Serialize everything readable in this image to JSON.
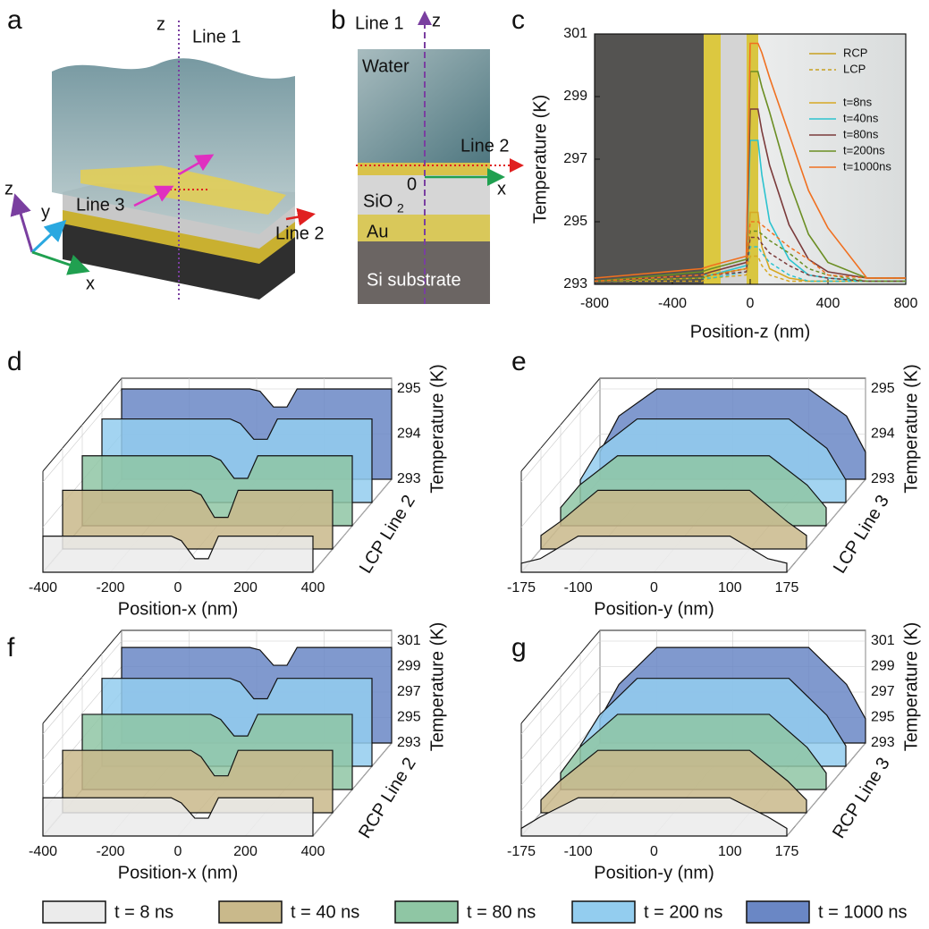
{
  "panel_labels": [
    "a",
    "b",
    "c",
    "d",
    "e",
    "f",
    "g"
  ],
  "diagram_a": {
    "z_axis": "z",
    "line1": "Line 1",
    "coord_z": "z",
    "coord_y": "y",
    "coord_x": "x",
    "line3": "Line 3",
    "line2": "Line 2"
  },
  "diagram_b": {
    "line1": "Line 1",
    "z": "z",
    "water": "Water",
    "line2": "Line 2",
    "origin": "0",
    "x": "x",
    "sio2": "SiO",
    "sio2_sub": "2",
    "au": "Au",
    "si": "Si substrate"
  },
  "chart_data": [
    {
      "type": "line",
      "x_label": "Position-z (nm)",
      "y_label": "Temperature (K)",
      "x": [
        -800,
        -250,
        -200,
        -20,
        0,
        40,
        60,
        100,
        200,
        300,
        400,
        600,
        800
      ],
      "xlim": [
        -800,
        800
      ],
      "xticks": [
        -800,
        -400,
        0,
        400,
        800
      ],
      "ylim": [
        293,
        301
      ],
      "yticks": [
        293,
        295,
        297,
        299,
        301
      ],
      "style_legend": [
        {
          "label": "RCP",
          "color": "#c8a020",
          "dashed": false
        },
        {
          "label": "LCP",
          "color": "#c8a020",
          "dashed": true
        }
      ],
      "series": [
        {
          "name": "t=8ns",
          "color": "#d6a824",
          "values": [
            293.1,
            293.2,
            293.3,
            293.5,
            295.3,
            295.3,
            294.2,
            293.5,
            293.2,
            293.1,
            293.1,
            293.1,
            293.1
          ],
          "lcp_values": [
            293.1,
            293.1,
            293.2,
            293.3,
            293.9,
            293.9,
            293.6,
            293.3,
            293.1,
            293.1,
            293.1,
            293.1,
            293.1
          ]
        },
        {
          "name": "t=40ns",
          "color": "#2cc3cf",
          "values": [
            293.1,
            293.3,
            293.3,
            293.6,
            297.6,
            297.6,
            296.5,
            295.0,
            293.8,
            293.3,
            293.2,
            293.1,
            293.1
          ],
          "lcp_values": [
            293.1,
            293.2,
            293.2,
            293.4,
            294.2,
            294.2,
            294.0,
            293.7,
            293.3,
            293.1,
            293.1,
            293.1,
            293.1
          ]
        },
        {
          "name": "t=80ns",
          "color": "#7b3b3b",
          "values": [
            293.1,
            293.3,
            293.4,
            293.7,
            298.6,
            298.6,
            297.9,
            296.8,
            294.9,
            293.8,
            293.4,
            293.2,
            293.2
          ],
          "lcp_values": [
            293.1,
            293.2,
            293.3,
            293.4,
            294.5,
            294.5,
            294.3,
            294.0,
            293.6,
            293.3,
            293.2,
            293.1,
            293.1
          ]
        },
        {
          "name": "t=200ns",
          "color": "#6b8e23",
          "values": [
            293.1,
            293.4,
            293.5,
            293.8,
            299.8,
            299.8,
            299.3,
            298.5,
            296.3,
            294.6,
            293.7,
            293.2,
            293.2
          ],
          "lcp_values": [
            293.1,
            293.2,
            293.3,
            293.5,
            294.7,
            294.7,
            294.6,
            294.4,
            294.0,
            293.5,
            293.3,
            293.1,
            293.1
          ]
        },
        {
          "name": "t=1000ns",
          "color": "#f07020",
          "values": [
            293.2,
            293.5,
            293.6,
            293.9,
            300.7,
            300.7,
            300.4,
            299.6,
            297.8,
            296.0,
            294.8,
            293.2,
            293.2
          ],
          "lcp_values": [
            293.1,
            293.3,
            293.3,
            293.5,
            295.0,
            295.0,
            294.9,
            294.7,
            294.2,
            293.8,
            293.3,
            293.2,
            293.2
          ]
        }
      ]
    },
    {
      "type": "waterfall",
      "x_label": "Position-x (nm)",
      "y_label": "Temperature (K)",
      "depth_label": "LCP Line 2",
      "x": [
        -400,
        -20,
        10,
        50,
        90,
        120,
        400
      ],
      "xlim": [
        -400,
        400
      ],
      "xticks": [
        -400,
        -200,
        0,
        200,
        400
      ],
      "ylim": [
        293,
        295
      ],
      "yticks": [
        293,
        294,
        295
      ],
      "series": [
        {
          "color": "#ebebeb",
          "values": [
            293.8,
            293.8,
            293.7,
            293.3,
            293.3,
            293.8,
            293.8
          ]
        },
        {
          "color": "#c9b98b",
          "values": [
            294.3,
            294.3,
            294.2,
            293.7,
            293.7,
            294.3,
            294.3
          ]
        },
        {
          "color": "#8fc6a4",
          "values": [
            294.55,
            294.55,
            294.45,
            294.05,
            294.05,
            294.55,
            294.55
          ]
        },
        {
          "color": "#93cdef",
          "values": [
            294.85,
            294.85,
            294.75,
            294.4,
            294.4,
            294.85,
            294.85
          ]
        },
        {
          "color": "#6a87c5",
          "values": [
            295,
            295,
            294.95,
            294.6,
            294.6,
            295,
            295
          ]
        }
      ]
    },
    {
      "type": "waterfall",
      "x_label": "Position-y (nm)",
      "y_label": "Temperature (K)",
      "depth_label": "LCP Line 3",
      "x": [
        -175,
        -150,
        -100,
        100,
        150,
        175
      ],
      "xlim": [
        -175,
        175
      ],
      "xticks": [
        -175,
        -100,
        0,
        100,
        175
      ],
      "ylim": [
        293,
        295
      ],
      "yticks": [
        293,
        294,
        295
      ],
      "series": [
        {
          "color": "#ebebeb",
          "values": [
            293.2,
            293.3,
            293.8,
            293.8,
            293.3,
            293.2
          ]
        },
        {
          "color": "#c9b98b",
          "values": [
            293.3,
            293.6,
            294.3,
            294.3,
            293.6,
            293.3
          ]
        },
        {
          "color": "#8fc6a4",
          "values": [
            293.4,
            293.9,
            294.55,
            294.55,
            293.9,
            293.4
          ]
        },
        {
          "color": "#93cdef",
          "values": [
            293.5,
            294.2,
            294.85,
            294.85,
            294.2,
            293.5
          ]
        },
        {
          "color": "#6a87c5",
          "values": [
            293.6,
            294.4,
            295,
            295,
            294.4,
            293.6
          ]
        }
      ]
    },
    {
      "type": "waterfall",
      "x_label": "Position-x (nm)",
      "y_label": "Temperature (K)",
      "depth_label": "RCP Line 2",
      "x": [
        -400,
        -20,
        10,
        50,
        90,
        120,
        400
      ],
      "xlim": [
        -400,
        400
      ],
      "xticks": [
        -400,
        -200,
        0,
        200,
        400
      ],
      "ylim": [
        293,
        301
      ],
      "yticks": [
        293,
        295,
        297,
        299,
        301
      ],
      "series": [
        {
          "color": "#ebebeb",
          "values": [
            296,
            296,
            295.6,
            294.4,
            294.4,
            296,
            296
          ]
        },
        {
          "color": "#c9b98b",
          "values": [
            297.9,
            297.9,
            297.4,
            295.9,
            295.9,
            297.9,
            297.9
          ]
        },
        {
          "color": "#8fc6a4",
          "values": [
            298.9,
            298.9,
            298.5,
            297.2,
            297.2,
            298.9,
            298.9
          ]
        },
        {
          "color": "#93cdef",
          "values": [
            299.9,
            299.9,
            299.6,
            298.3,
            298.3,
            299.9,
            299.9
          ]
        },
        {
          "color": "#6a87c5",
          "values": [
            300.5,
            300.5,
            300.3,
            299.1,
            299.1,
            300.5,
            300.5
          ]
        }
      ]
    },
    {
      "type": "waterfall",
      "x_label": "Position-y (nm)",
      "y_label": "Temperature (K)",
      "depth_label": "RCP Line 3",
      "x": [
        -175,
        -150,
        -100,
        100,
        150,
        175
      ],
      "xlim": [
        -175,
        175
      ],
      "xticks": [
        -175,
        -100,
        0,
        100,
        175
      ],
      "ylim": [
        293,
        301
      ],
      "yticks": [
        293,
        295,
        297,
        299,
        301
      ],
      "series": [
        {
          "color": "#ebebeb",
          "values": [
            293.6,
            294.5,
            296,
            296,
            294.5,
            293.6
          ]
        },
        {
          "color": "#c9b98b",
          "values": [
            294,
            295.5,
            297.9,
            297.9,
            295.5,
            294
          ]
        },
        {
          "color": "#8fc6a4",
          "values": [
            294.3,
            296.3,
            298.9,
            298.9,
            296.3,
            294.3
          ]
        },
        {
          "color": "#93cdef",
          "values": [
            294.6,
            297,
            299.9,
            299.9,
            297,
            294.6
          ]
        },
        {
          "color": "#6a87c5",
          "values": [
            294.9,
            297.6,
            300.5,
            300.5,
            297.6,
            294.9
          ]
        }
      ]
    }
  ],
  "legend": [
    {
      "label": "t = 8 ns",
      "color": "#ebebeb"
    },
    {
      "label": "t = 40 ns",
      "color": "#c9b98b"
    },
    {
      "label": "t = 80 ns",
      "color": "#8fc6a4"
    },
    {
      "label": "t = 200 ns",
      "color": "#93cdef"
    },
    {
      "label": "t = 1000 ns",
      "color": "#6a87c5"
    }
  ]
}
